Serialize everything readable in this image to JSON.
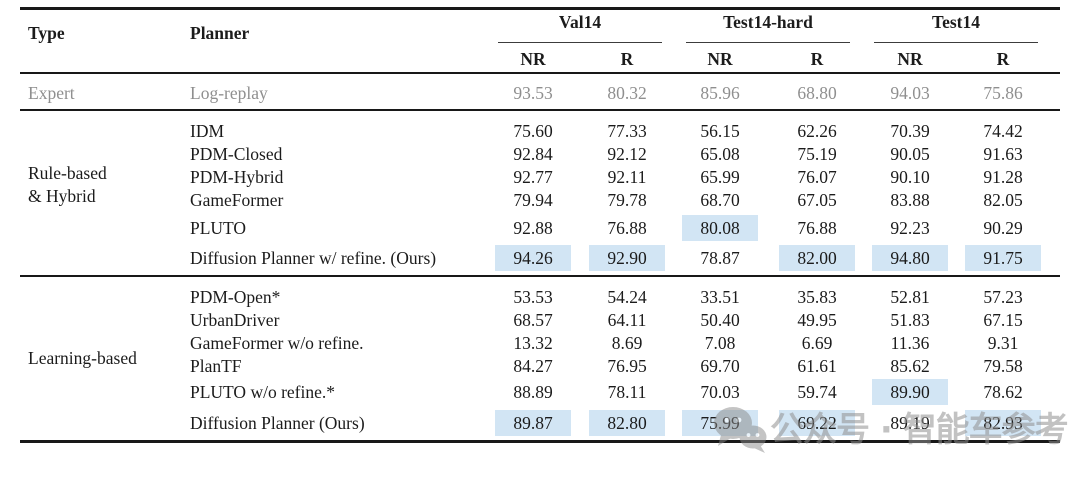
{
  "colors": {
    "highlight": "#d2e5f4",
    "expert_text": "#8f8f8f",
    "body_text": "#1b1b1b",
    "rule": "#181818",
    "watermark": "#8f8f8f"
  },
  "table": {
    "headers": {
      "type": "Type",
      "planner": "Planner"
    },
    "groups": [
      {
        "label": "Val14",
        "subcols": [
          "NR",
          "R"
        ]
      },
      {
        "label": "Test14-hard",
        "subcols": [
          "NR",
          "R"
        ]
      },
      {
        "label": "Test14",
        "subcols": [
          "NR",
          "R"
        ]
      }
    ],
    "expert": {
      "type": "Expert",
      "planner": "Log-replay",
      "values": [
        "93.53",
        "80.32",
        "85.96",
        "68.80",
        "94.03",
        "75.86"
      ]
    },
    "sections": [
      {
        "type_lines": [
          "Rule-based",
          "& Hybrid"
        ],
        "rows": [
          {
            "planner": "IDM",
            "values": [
              "75.60",
              "77.33",
              "56.15",
              "62.26",
              "70.39",
              "74.42"
            ],
            "highlight": [
              0,
              0,
              0,
              0,
              0,
              0
            ]
          },
          {
            "planner": "PDM-Closed",
            "values": [
              "92.84",
              "92.12",
              "65.08",
              "75.19",
              "90.05",
              "91.63"
            ],
            "highlight": [
              0,
              0,
              0,
              0,
              0,
              0
            ]
          },
          {
            "planner": "PDM-Hybrid",
            "values": [
              "92.77",
              "92.11",
              "65.99",
              "76.07",
              "90.10",
              "91.28"
            ],
            "highlight": [
              0,
              0,
              0,
              0,
              0,
              0
            ]
          },
          {
            "planner": "GameFormer",
            "values": [
              "79.94",
              "79.78",
              "68.70",
              "67.05",
              "83.88",
              "82.05"
            ],
            "highlight": [
              0,
              0,
              0,
              0,
              0,
              0
            ]
          },
          {
            "planner": "PLUTO",
            "values": [
              "92.88",
              "76.88",
              "80.08",
              "76.88",
              "92.23",
              "90.29"
            ],
            "highlight": [
              0,
              0,
              1,
              0,
              0,
              0
            ]
          },
          {
            "planner": "Diffusion Planner w/ refine. (Ours)",
            "values": [
              "94.26",
              "92.90",
              "78.87",
              "82.00",
              "94.80",
              "91.75"
            ],
            "highlight": [
              1,
              1,
              0,
              1,
              1,
              1
            ]
          }
        ]
      },
      {
        "type_lines": [
          "Learning-based"
        ],
        "rows": [
          {
            "planner": "PDM-Open*",
            "values": [
              "53.53",
              "54.24",
              "33.51",
              "35.83",
              "52.81",
              "57.23"
            ],
            "highlight": [
              0,
              0,
              0,
              0,
              0,
              0
            ]
          },
          {
            "planner": "UrbanDriver",
            "values": [
              "68.57",
              "64.11",
              "50.40",
              "49.95",
              "51.83",
              "67.15"
            ],
            "highlight": [
              0,
              0,
              0,
              0,
              0,
              0
            ]
          },
          {
            "planner": "GameFormer w/o refine.",
            "values": [
              "13.32",
              "8.69",
              "7.08",
              "6.69",
              "11.36",
              "9.31"
            ],
            "highlight": [
              0,
              0,
              0,
              0,
              0,
              0
            ]
          },
          {
            "planner": "PlanTF",
            "values": [
              "84.27",
              "76.95",
              "69.70",
              "61.61",
              "85.62",
              "79.58"
            ],
            "highlight": [
              0,
              0,
              0,
              0,
              0,
              0
            ]
          },
          {
            "planner": "PLUTO w/o refine.*",
            "values": [
              "88.89",
              "78.11",
              "70.03",
              "59.74",
              "89.90",
              "78.62"
            ],
            "highlight": [
              0,
              0,
              0,
              0,
              1,
              0
            ]
          },
          {
            "planner": "Diffusion Planner (Ours)",
            "values": [
              "89.87",
              "82.80",
              "75.99",
              "69.22",
              "89.19",
              "82.93"
            ],
            "highlight": [
              1,
              1,
              1,
              1,
              0,
              1
            ]
          }
        ]
      }
    ]
  },
  "watermark": {
    "icon": "wechat-icon",
    "text": "公众号 · 智能车参考"
  }
}
